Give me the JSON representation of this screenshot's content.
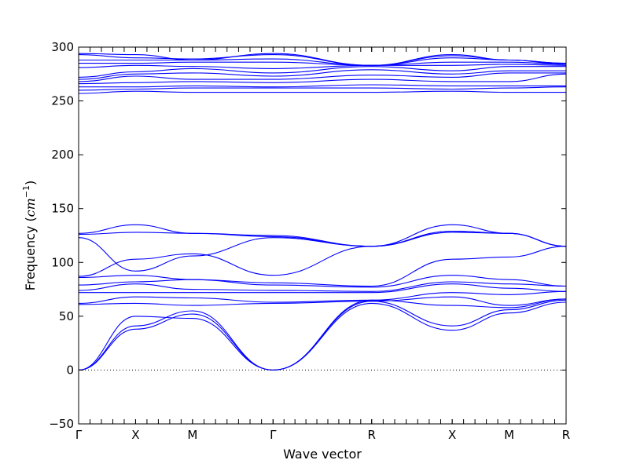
{
  "chart_data": {
    "type": "line",
    "title": "",
    "xlabel": "Wave vector",
    "ylabel": "Frequency (cm⁻¹)",
    "ylabel_text": "Frequency (",
    "ylabel_unit": "cm",
    "ylabel_exp": "−1",
    "ylabel_close": ")",
    "ylim": [
      -50,
      300
    ],
    "yticks": [
      -50,
      0,
      50,
      100,
      150,
      200,
      250,
      300
    ],
    "high_symbol_points": [
      {
        "label": "Γ",
        "x": 0
      },
      {
        "label": "X",
        "x": 0.5
      },
      {
        "label": "M",
        "x": 1.0
      },
      {
        "label": "Γ",
        "x": 1.707
      },
      {
        "label": "R",
        "x": 2.573
      },
      {
        "label": "X",
        "x": 3.28
      },
      {
        "label": "M",
        "x": 3.78
      },
      {
        "label": "R",
        "x": 4.28
      }
    ],
    "xlim": [
      0,
      4.28
    ],
    "zero_line": true,
    "line_color": "#0000ff",
    "series": [
      {
        "x": [
          0,
          0.5,
          1.0,
          1.707,
          2.573,
          3.28,
          3.78,
          4.28
        ],
        "values": [
          0,
          38,
          52,
          0,
          62,
          37,
          53,
          63
        ]
      },
      {
        "x": [
          0,
          0.5,
          1.0,
          1.707,
          2.573,
          3.28,
          3.78,
          4.28
        ],
        "values": [
          0,
          41,
          55,
          0,
          64,
          41,
          56,
          65
        ]
      },
      {
        "x": [
          0,
          0.5,
          1.0,
          1.707,
          2.573,
          3.28,
          3.78,
          4.28
        ],
        "values": [
          0,
          50,
          48,
          0,
          65,
          60,
          58,
          66
        ]
      },
      {
        "x": [
          0,
          0.5,
          1.0,
          1.707,
          2.573,
          3.28,
          3.78,
          4.28
        ],
        "values": [
          61,
          62,
          60,
          62,
          64,
          68,
          60,
          66
        ]
      },
      {
        "x": [
          0,
          0.5,
          1.0,
          1.707,
          2.573,
          3.28,
          3.78,
          4.28
        ],
        "values": [
          62,
          68,
          67,
          63,
          65,
          72,
          70,
          73
        ]
      },
      {
        "x": [
          0,
          0.5,
          1.0,
          1.707,
          2.573,
          3.28,
          3.78,
          4.28
        ],
        "values": [
          72,
          72,
          72,
          72,
          72,
          80,
          76,
          73
        ]
      },
      {
        "x": [
          0,
          0.5,
          1.0,
          1.707,
          2.573,
          3.28,
          3.78,
          4.28
        ],
        "values": [
          74,
          80,
          75,
          74,
          73,
          82,
          80,
          78
        ]
      },
      {
        "x": [
          0,
          0.5,
          1.0,
          1.707,
          2.573,
          3.28,
          3.78,
          4.28
        ],
        "values": [
          79,
          82,
          84,
          79,
          77,
          88,
          84,
          78
        ]
      },
      {
        "x": [
          0,
          0.5,
          1.0,
          1.707,
          2.573,
          3.28,
          3.78,
          4.28
        ],
        "values": [
          86,
          88,
          84,
          81,
          78,
          103,
          105,
          115
        ]
      },
      {
        "x": [
          0,
          0.5,
          1.0,
          1.707,
          2.573,
          3.28,
          3.78,
          4.28
        ],
        "values": [
          87,
          103,
          108,
          88,
          115,
          128,
          127,
          115
        ]
      },
      {
        "x": [
          0,
          0.5,
          1.0,
          1.707,
          2.573,
          3.28,
          3.78,
          4.28
        ],
        "values": [
          123,
          92,
          106,
          123,
          115,
          135,
          127,
          115
        ]
      },
      {
        "x": [
          0,
          0.5,
          1.0,
          1.707,
          2.573,
          3.28,
          3.78,
          4.28
        ],
        "values": [
          126,
          128,
          127,
          124,
          115,
          129,
          127,
          115
        ]
      },
      {
        "x": [
          0,
          0.5,
          1.0,
          1.707,
          2.573,
          3.28,
          3.78,
          4.28
        ],
        "values": [
          127,
          135,
          127,
          125,
          115,
          129,
          127,
          115
        ]
      },
      {
        "x": [
          0,
          0.5,
          1.0,
          1.707,
          2.573,
          3.28,
          3.78,
          4.28
        ],
        "values": [
          257,
          259,
          258,
          258,
          258,
          259,
          258,
          258
        ]
      },
      {
        "x": [
          0,
          0.5,
          1.0,
          1.707,
          2.573,
          3.28,
          3.78,
          4.28
        ],
        "values": [
          260,
          261,
          262,
          262,
          262,
          261,
          262,
          263
        ]
      },
      {
        "x": [
          0,
          0.5,
          1.0,
          1.707,
          2.573,
          3.28,
          3.78,
          4.28
        ],
        "values": [
          263,
          263,
          264,
          263,
          265,
          264,
          264,
          264
        ]
      },
      {
        "x": [
          0,
          0.5,
          1.0,
          1.707,
          2.573,
          3.28,
          3.78,
          4.28
        ],
        "values": [
          266,
          267,
          268,
          267,
          270,
          268,
          268,
          275
        ]
      },
      {
        "x": [
          0,
          0.5,
          1.0,
          1.707,
          2.573,
          3.28,
          3.78,
          4.28
        ],
        "values": [
          268,
          273,
          270,
          270,
          274,
          272,
          276,
          276
        ]
      },
      {
        "x": [
          0,
          0.5,
          1.0,
          1.707,
          2.573,
          3.28,
          3.78,
          4.28
        ],
        "values": [
          270,
          275,
          276,
          273,
          279,
          275,
          278,
          278
        ]
      },
      {
        "x": [
          0,
          0.5,
          1.0,
          1.707,
          2.573,
          3.28,
          3.78,
          4.28
        ],
        "values": [
          272,
          277,
          280,
          276,
          282,
          278,
          282,
          282
        ]
      },
      {
        "x": [
          0,
          0.5,
          1.0,
          1.707,
          2.573,
          3.28,
          3.78,
          4.28
        ],
        "values": [
          281,
          283,
          282,
          280,
          283,
          283,
          284,
          283
        ]
      },
      {
        "x": [
          0,
          0.5,
          1.0,
          1.707,
          2.573,
          3.28,
          3.78,
          4.28
        ],
        "values": [
          285,
          285,
          286,
          286,
          283,
          286,
          286,
          284
        ]
      },
      {
        "x": [
          0,
          0.5,
          1.0,
          1.707,
          2.573,
          3.28,
          3.78,
          4.28
        ],
        "values": [
          288,
          288,
          288,
          289,
          283,
          290,
          288,
          284
        ]
      },
      {
        "x": [
          0,
          0.5,
          1.0,
          1.707,
          2.573,
          3.28,
          3.78,
          4.28
        ],
        "values": [
          293,
          290,
          289,
          293,
          283,
          293,
          288,
          285
        ]
      },
      {
        "x": [
          0,
          0.5,
          1.0,
          1.707,
          2.573,
          3.28,
          3.78,
          4.28
        ],
        "values": [
          294,
          293,
          288,
          294,
          283,
          292,
          288,
          285
        ]
      }
    ]
  }
}
